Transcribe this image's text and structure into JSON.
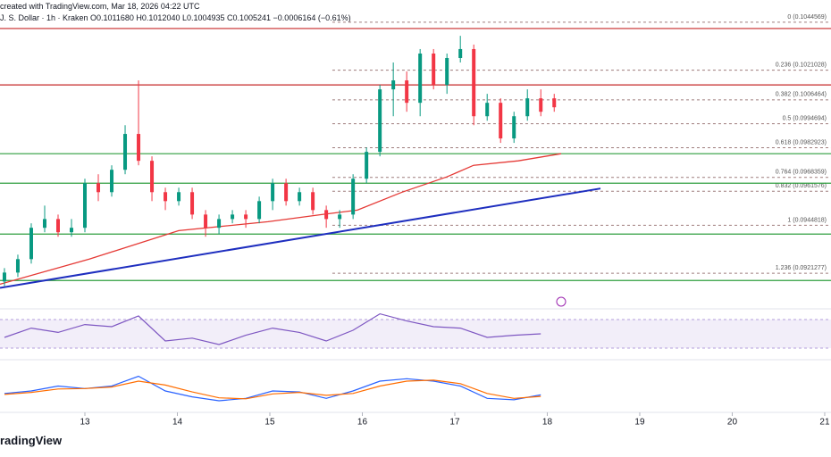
{
  "header": {
    "source": "created with TradingView.com, Mar 18, 2026 04:22 UTC",
    "legend": "J. S. Dollar · 1h · Kraken  O0.1011680 H0.1012040 L0.1004935 C0.1005241 −0.0006164 (−0.61%)"
  },
  "footer": {
    "brand": "radingView"
  },
  "chart_data": {
    "type": "candlestick",
    "up_color": "#089981",
    "down_color": "#f23645",
    "xlim": [
      12.082,
      21.068
    ],
    "xticks": [
      13,
      14,
      15,
      16,
      17,
      18,
      19,
      20,
      21
    ],
    "ylim": [
      0.09108,
      0.10555
    ],
    "x": [
      12.13,
      12.275,
      12.42,
      12.565,
      12.71,
      12.855,
      13.0,
      13.145,
      13.29,
      13.435,
      13.58,
      13.725,
      13.87,
      14.015,
      14.16,
      14.305,
      14.45,
      14.595,
      14.74,
      14.885,
      15.03,
      15.175,
      15.32,
      15.465,
      15.61,
      15.755,
      15.9,
      16.045,
      16.19,
      16.335,
      16.48,
      16.625,
      16.77,
      16.915,
      17.06,
      17.205,
      17.35,
      17.495,
      17.64,
      17.785,
      17.93,
      18.075
    ],
    "open": [
      0.09172,
      0.09216,
      0.09282,
      0.09436,
      0.09479,
      0.09414,
      0.09436,
      0.09655,
      0.09611,
      0.09721,
      0.09897,
      0.09765,
      0.09611,
      0.09567,
      0.09611,
      0.09501,
      0.09436,
      0.09479,
      0.09501,
      0.09479,
      0.09567,
      0.09655,
      0.09567,
      0.09611,
      0.09523,
      0.09479,
      0.09501,
      0.09677,
      0.09809,
      0.10116,
      0.1016,
      0.1005,
      0.10292,
      0.10138,
      0.1027,
      0.10314,
      0.09984,
      0.1005,
      0.09875,
      0.09984,
      0.10072,
      0.10072
    ],
    "high": [
      0.09238,
      0.09304,
      0.09458,
      0.09545,
      0.09501,
      0.09479,
      0.09677,
      0.09699,
      0.09743,
      0.0994,
      0.1016,
      0.09787,
      0.09633,
      0.09633,
      0.09633,
      0.09523,
      0.09501,
      0.09523,
      0.09523,
      0.09589,
      0.09677,
      0.09677,
      0.09633,
      0.09633,
      0.09545,
      0.09523,
      0.09699,
      0.09831,
      0.10138,
      0.10248,
      0.10204,
      0.10314,
      0.10314,
      0.10292,
      0.10379,
      0.10336,
      0.10094,
      0.10072,
      0.10006,
      0.10116,
      0.10116,
      0.10094
    ],
    "low": [
      0.0915,
      0.09194,
      0.0926,
      0.09414,
      0.09392,
      0.09392,
      0.09414,
      0.09567,
      0.09589,
      0.09699,
      0.09743,
      0.09567,
      0.09523,
      0.09545,
      0.09479,
      0.09392,
      0.09405,
      0.09458,
      0.09436,
      0.09458,
      0.09523,
      0.09545,
      0.09545,
      0.09501,
      0.09436,
      0.09436,
      0.09479,
      0.09655,
      0.09787,
      0.09984,
      0.10006,
      0.09984,
      0.10116,
      0.10094,
      0.10248,
      0.0994,
      0.09962,
      0.09853,
      0.09853,
      0.09962,
      0.09984,
      0.10006
    ],
    "close": [
      0.09216,
      0.09282,
      0.09436,
      0.09479,
      0.09414,
      0.09436,
      0.09655,
      0.09611,
      0.09721,
      0.09897,
      0.09765,
      0.09611,
      0.09567,
      0.09611,
      0.09501,
      0.09436,
      0.09479,
      0.09501,
      0.09479,
      0.09567,
      0.09655,
      0.09567,
      0.09611,
      0.09523,
      0.09479,
      0.09501,
      0.09677,
      0.09809,
      0.10116,
      0.1016,
      0.1005,
      0.10292,
      0.10138,
      0.1027,
      0.10314,
      0.09984,
      0.1005,
      0.09875,
      0.09984,
      0.10072,
      0.10006,
      0.10028
    ],
    "moving_average": {
      "color": "#e53935",
      "x": [
        12.082,
        13.048,
        14.014,
        14.981,
        15.56,
        15.947,
        16.43,
        16.913,
        17.203,
        17.686,
        18.15
      ],
      "values": [
        0.09159,
        0.09282,
        0.09422,
        0.09466,
        0.09501,
        0.09523,
        0.09611,
        0.09686,
        0.09743,
        0.09765,
        0.098
      ]
    },
    "trend_line": {
      "color": "#1e2ebf",
      "x": [
        12.082,
        18.575
      ],
      "values": [
        0.09141,
        0.09629
      ]
    },
    "levels": [
      {
        "value": 0.10415,
        "color": "#c62828"
      },
      {
        "value": 0.10138,
        "color": "#c62828"
      },
      {
        "value": 0.098,
        "color": "#2e9e3e"
      },
      {
        "value": 0.09655,
        "color": "#2e9e3e"
      },
      {
        "value": 0.09405,
        "color": "#2e9e3e"
      },
      {
        "value": 0.09177,
        "color": "#2e9e3e"
      }
    ],
    "fib_start": 15.676,
    "fib_color": "#9e7c7c",
    "fib_levels": [
      {
        "value": 0.1044569,
        "label": "0 (0.1044569)"
      },
      {
        "value": 0.1021028,
        "label": "0.236 (0.1021028)"
      },
      {
        "value": 0.1006464,
        "label": "0.382 (0.1006464)"
      },
      {
        "value": 0.0994694,
        "label": "0.5 (0.0994694)"
      },
      {
        "value": 0.0982923,
        "label": "0.618 (0.0982923)"
      },
      {
        "value": 0.0968359,
        "label": "0.764 (0.0968359)"
      },
      {
        "value": 0.0961576,
        "label": "0.832 (0.0961576)"
      },
      {
        "value": 0.0944818,
        "label": "1 (0.0944818)"
      },
      {
        "value": 0.0921277,
        "label": "1.236 (0.0921277)"
      }
    ],
    "rsi": {
      "color": "#7e57c2",
      "ylim": [
        15,
        85
      ],
      "band": [
        30,
        70
      ],
      "x": [
        12.13,
        12.42,
        12.71,
        13.0,
        13.29,
        13.58,
        13.87,
        14.16,
        14.45,
        14.74,
        15.03,
        15.32,
        15.61,
        15.9,
        16.19,
        16.48,
        16.77,
        17.06,
        17.35,
        17.64,
        17.93
      ],
      "values": [
        45,
        58,
        52,
        63,
        60,
        75,
        40,
        44,
        35,
        48,
        58,
        52,
        40,
        55,
        78,
        68,
        60,
        58,
        45,
        48,
        50
      ]
    },
    "macd": {
      "ylim": [
        -0.0003,
        0.0007
      ],
      "x": [
        12.13,
        12.42,
        12.71,
        13.0,
        13.29,
        13.58,
        13.87,
        14.16,
        14.45,
        14.74,
        15.03,
        15.32,
        15.61,
        15.9,
        16.19,
        16.48,
        16.77,
        17.06,
        17.35,
        17.64,
        17.93
      ],
      "series": [
        {
          "color": "#2962ff",
          "values": [
            5e-05,
            0.0001,
            0.0002,
            0.00015,
            0.0002,
            0.0004,
            0.0001,
            -2e-05,
            -0.0001,
            -5e-05,
            0.0001,
            8e-05,
            -5e-05,
            0.0001,
            0.0003,
            0.00035,
            0.0003,
            0.0002,
            -5e-05,
            -8e-05,
            2e-05
          ]
        },
        {
          "color": "#ff6d00",
          "values": [
            3e-05,
            7e-05,
            0.00014,
            0.00015,
            0.00018,
            0.0003,
            0.00022,
            8e-05,
            -4e-05,
            -6e-05,
            4e-05,
            7e-05,
            1e-05,
            5e-05,
            0.0002,
            0.0003,
            0.00032,
            0.00025,
            5e-05,
            -5e-05,
            -1e-05
          ]
        }
      ]
    }
  }
}
